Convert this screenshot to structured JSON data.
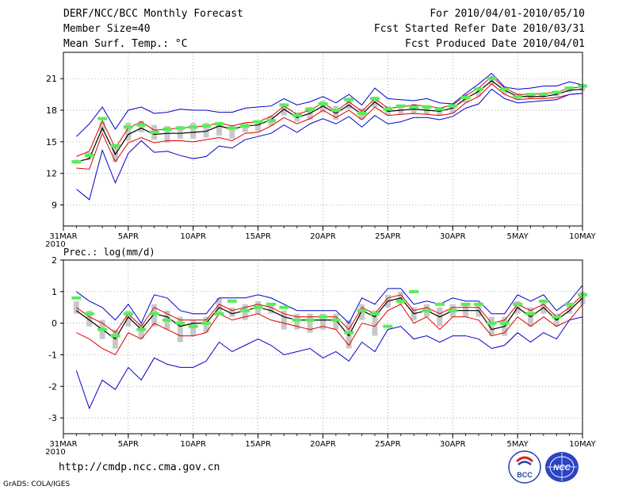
{
  "header": {
    "title": "DERF/NCC/BCC Monthly Forecast",
    "member_size": "Member Size=40",
    "variable": "Mean Surf. Temp.: °C",
    "period": "For 2010/04/01-2010/05/10",
    "started": "Fcst Started Refer Date 2010/03/31",
    "produced": "Fcst Produced Date 2010/04/01"
  },
  "colors": {
    "envelope": "#0000cc",
    "spread": "#dd0000",
    "mean": "#000000",
    "bar": "#c8c8c8",
    "median": "#55ee55",
    "grid": "#888888"
  },
  "footer": {
    "url": "http://cmdp.ncc.cma.gov.cn",
    "grads": "GrADS: COLA/IGES"
  },
  "logos": {
    "bcc_text": "BCC",
    "ncc_text": "NCC"
  },
  "chart_data": [
    {
      "type": "line",
      "title": "Mean Surf. Temp.: °C",
      "x_tick_labels": [
        "31MAR\n2010",
        "5APR",
        "10APR",
        "15APR",
        "20APR",
        "25APR",
        "30APR",
        "5MAY",
        "10MAY"
      ],
      "x_tick_days": [
        0,
        5,
        10,
        15,
        20,
        25,
        30,
        35,
        40
      ],
      "xlim": [
        0,
        40
      ],
      "ylim": [
        7,
        23.5
      ],
      "y_ticks": [
        9,
        12,
        15,
        18,
        21
      ],
      "days": [
        1,
        2,
        3,
        4,
        5,
        6,
        7,
        8,
        9,
        10,
        11,
        12,
        13,
        14,
        15,
        16,
        17,
        18,
        19,
        20,
        21,
        22,
        23,
        24,
        25,
        26,
        27,
        28,
        29,
        30,
        31,
        32,
        33,
        34,
        35,
        36,
        37,
        38,
        39,
        40
      ],
      "series": [
        {
          "name": "max",
          "values": [
            15.5,
            16.7,
            18.3,
            16.2,
            18.0,
            18.3,
            17.7,
            17.8,
            18.1,
            18.0,
            18.0,
            17.8,
            17.8,
            18.2,
            18.3,
            18.4,
            19.1,
            18.5,
            18.8,
            19.3,
            18.7,
            19.5,
            18.5,
            20.1,
            19.1,
            19.0,
            18.9,
            19.1,
            18.7,
            18.6,
            19.6,
            20.5,
            21.5,
            20.2,
            20.0,
            20.1,
            20.3,
            20.3,
            20.7,
            20.4
          ]
        },
        {
          "name": "upper",
          "values": [
            13.6,
            14.1,
            17.0,
            14.4,
            16.3,
            16.9,
            16.1,
            16.2,
            16.3,
            16.4,
            16.5,
            16.8,
            16.5,
            16.8,
            16.9,
            17.4,
            18.4,
            17.6,
            18.0,
            18.7,
            17.9,
            18.8,
            17.9,
            19.1,
            18.2,
            18.3,
            18.5,
            18.4,
            18.2,
            18.5,
            19.4,
            20.1,
            21.2,
            20.1,
            19.5,
            19.5,
            19.6,
            19.7,
            20.1,
            20.2
          ]
        },
        {
          "name": "mean",
          "values": [
            13.1,
            13.4,
            16.3,
            13.8,
            15.7,
            16.3,
            15.7,
            15.8,
            15.8,
            15.9,
            16.0,
            16.5,
            16.2,
            16.5,
            16.6,
            17.1,
            18.1,
            17.3,
            17.7,
            18.4,
            17.7,
            18.5,
            17.6,
            18.8,
            17.9,
            18.0,
            18.1,
            18.0,
            17.9,
            18.2,
            19.1,
            19.8,
            20.8,
            19.9,
            19.3,
            19.3,
            19.3,
            19.5,
            19.9,
            20.0
          ]
        },
        {
          "name": "lower",
          "values": [
            12.5,
            12.4,
            15.8,
            13.1,
            14.9,
            15.4,
            14.9,
            15.1,
            15.1,
            15.0,
            15.2,
            15.4,
            15.1,
            15.8,
            15.9,
            16.5,
            17.3,
            16.7,
            17.2,
            18.0,
            17.3,
            18.0,
            17.1,
            18.3,
            17.5,
            17.6,
            17.7,
            17.6,
            17.5,
            17.7,
            18.7,
            19.3,
            20.5,
            19.5,
            19.0,
            19.1,
            19.1,
            19.2,
            19.5,
            19.6
          ]
        },
        {
          "name": "min",
          "values": [
            10.5,
            9.5,
            14.2,
            11.1,
            13.9,
            15.1,
            14.0,
            14.1,
            13.7,
            13.4,
            13.6,
            14.6,
            14.4,
            15.2,
            15.5,
            15.8,
            16.6,
            15.9,
            16.7,
            17.2,
            16.7,
            17.4,
            16.4,
            17.5,
            16.7,
            16.9,
            17.3,
            17.3,
            17.1,
            17.4,
            18.2,
            18.6,
            20.0,
            19.1,
            18.7,
            18.8,
            18.9,
            19.0,
            19.5,
            19.6
          ]
        }
      ],
      "box_low": [
        12.9,
        13.3,
        15.9,
        13.1,
        15.1,
        15.9,
        15.2,
        14.9,
        15.3,
        15.3,
        15.4,
        15.6,
        15.3,
        15.9,
        16.0,
        16.5,
        17.5,
        16.9,
        17.1,
        17.8,
        17.1,
        18.1,
        17.1,
        18.3,
        17.5,
        17.6,
        17.6,
        17.6,
        17.5,
        17.7,
        18.7,
        19.3,
        20.4,
        19.5,
        19.0,
        19.1,
        19.2,
        19.3,
        19.7,
        19.8
      ],
      "box_high": [
        13.3,
        14.0,
        16.9,
        14.8,
        16.8,
        17.0,
        16.6,
        16.5,
        16.5,
        16.8,
        16.8,
        16.9,
        16.5,
        16.8,
        16.9,
        17.5,
        18.5,
        17.8,
        18.3,
        18.9,
        18.4,
        19.2,
        18.2,
        19.3,
        18.4,
        18.4,
        18.6,
        18.5,
        18.3,
        18.5,
        19.5,
        20.2,
        21.2,
        20.1,
        19.6,
        19.6,
        19.7,
        19.8,
        20.2,
        20.5
      ],
      "median": [
        13.1,
        13.7,
        17.2,
        14.6,
        16.4,
        16.6,
        15.9,
        16.2,
        16.3,
        16.4,
        16.5,
        16.7,
        16.3,
        16.5,
        16.9,
        17.0,
        18.5,
        17.5,
        18.1,
        18.6,
        18.0,
        19.0,
        17.7,
        19.1,
        18.1,
        18.4,
        18.3,
        18.3,
        18.1,
        18.4,
        19.2,
        20.0,
        21.0,
        20.0,
        19.3,
        19.5,
        19.5,
        19.7,
        20.1,
        20.3
      ]
    },
    {
      "type": "line",
      "title": "Prec.: log(mm/d)",
      "x_tick_labels": [
        "31MAR\n2010",
        "5APR",
        "10APR",
        "15APR",
        "20APR",
        "25APR",
        "30APR",
        "5MAY",
        "10MAY"
      ],
      "x_tick_days": [
        0,
        5,
        10,
        15,
        20,
        25,
        30,
        35,
        40
      ],
      "xlim": [
        0,
        40
      ],
      "ylim": [
        -3.5,
        2
      ],
      "y_ticks": [
        -3,
        -2,
        -1,
        0,
        1,
        2
      ],
      "days": [
        1,
        2,
        3,
        4,
        5,
        6,
        7,
        8,
        9,
        10,
        11,
        12,
        13,
        14,
        15,
        16,
        17,
        18,
        19,
        20,
        21,
        22,
        23,
        24,
        25,
        26,
        27,
        28,
        29,
        30,
        31,
        32,
        33,
        34,
        35,
        36,
        37,
        38,
        39,
        40
      ],
      "series": [
        {
          "name": "max",
          "values": [
            1.0,
            0.7,
            0.5,
            0.1,
            0.6,
            0.0,
            0.9,
            0.8,
            0.4,
            0.3,
            0.3,
            0.8,
            0.8,
            0.8,
            0.9,
            0.8,
            0.6,
            0.4,
            0.4,
            0.4,
            0.4,
            0.0,
            0.8,
            0.6,
            1.1,
            1.1,
            0.6,
            0.7,
            0.6,
            0.8,
            0.7,
            0.7,
            0.3,
            0.3,
            0.9,
            0.7,
            0.9,
            0.4,
            0.7,
            1.2
          ]
        },
        {
          "name": "upper",
          "values": [
            0.5,
            0.2,
            0.0,
            -0.3,
            0.3,
            -0.1,
            0.5,
            0.3,
            0.1,
            0.1,
            0.1,
            0.6,
            0.4,
            0.5,
            0.6,
            0.5,
            0.3,
            0.2,
            0.2,
            0.2,
            0.2,
            -0.2,
            0.5,
            0.3,
            0.8,
            0.9,
            0.4,
            0.5,
            0.3,
            0.5,
            0.5,
            0.5,
            0.0,
            0.1,
            0.6,
            0.4,
            0.6,
            0.2,
            0.5,
            0.9
          ]
        },
        {
          "name": "mean",
          "values": [
            0.4,
            0.1,
            -0.2,
            -0.5,
            0.2,
            -0.2,
            0.3,
            0.2,
            -0.1,
            0.0,
            0.0,
            0.5,
            0.3,
            0.4,
            0.5,
            0.4,
            0.2,
            0.1,
            0.1,
            0.1,
            0.1,
            -0.4,
            0.4,
            0.2,
            0.7,
            0.8,
            0.3,
            0.4,
            0.2,
            0.4,
            0.4,
            0.4,
            -0.2,
            -0.1,
            0.5,
            0.2,
            0.5,
            0.1,
            0.4,
            0.8
          ]
        },
        {
          "name": "lower",
          "values": [
            -0.3,
            -0.5,
            -0.8,
            -1.0,
            -0.3,
            -0.5,
            0.0,
            -0.2,
            -0.4,
            -0.4,
            -0.3,
            0.3,
            0.1,
            0.2,
            0.3,
            0.1,
            0.0,
            -0.1,
            -0.2,
            -0.1,
            -0.2,
            -0.7,
            0.0,
            -0.1,
            0.4,
            0.6,
            0.0,
            0.2,
            -0.2,
            0.2,
            0.2,
            0.1,
            -0.4,
            -0.3,
            0.2,
            -0.1,
            0.2,
            -0.1,
            0.1,
            0.6
          ]
        },
        {
          "name": "min",
          "values": [
            -1.5,
            -2.7,
            -1.8,
            -2.1,
            -1.4,
            -1.8,
            -1.1,
            -1.3,
            -1.4,
            -1.4,
            -1.2,
            -0.6,
            -0.9,
            -0.7,
            -0.5,
            -0.7,
            -1.0,
            -0.9,
            -0.8,
            -1.1,
            -0.9,
            -1.2,
            -0.6,
            -0.9,
            -0.2,
            -0.1,
            -0.5,
            -0.4,
            -0.6,
            -0.4,
            -0.4,
            -0.5,
            -0.8,
            -0.7,
            -0.3,
            -0.6,
            -0.3,
            -0.5,
            0.1,
            0.2
          ]
        }
      ],
      "box_low": [
        0.3,
        -0.1,
        -0.5,
        -0.8,
        -0.1,
        -0.5,
        -0.1,
        -0.2,
        -0.6,
        -0.4,
        -0.3,
        0.3,
        0.2,
        0.1,
        0.3,
        0.3,
        -0.2,
        -0.2,
        -0.3,
        -0.2,
        -0.2,
        -0.8,
        0.1,
        -0.4,
        0.5,
        0.6,
        0.1,
        0.2,
        -0.1,
        0.2,
        0.2,
        0.2,
        -0.4,
        -0.4,
        0.3,
        -0.1,
        0.3,
        -0.1,
        0.3,
        0.6
      ],
      "box_high": [
        0.7,
        0.4,
        0.1,
        -0.2,
        0.4,
        0.0,
        0.6,
        0.4,
        0.2,
        0.1,
        0.2,
        0.8,
        0.5,
        0.6,
        0.7,
        0.6,
        0.4,
        0.3,
        0.3,
        0.3,
        0.3,
        0.1,
        0.6,
        0.4,
        0.9,
        1.0,
        0.5,
        0.6,
        0.5,
        0.6,
        0.6,
        0.6,
        0.2,
        0.2,
        0.7,
        0.5,
        0.7,
        0.3,
        0.6,
        1.0
      ],
      "median": [
        0.8,
        0.3,
        -0.2,
        -0.4,
        0.3,
        -0.2,
        0.3,
        0.1,
        0.0,
        -0.1,
        0.0,
        0.3,
        0.7,
        0.4,
        0.5,
        0.6,
        0.5,
        0.1,
        0.1,
        0.2,
        0.1,
        -0.3,
        0.4,
        0.3,
        -0.1,
        0.7,
        1.0,
        0.4,
        0.6,
        0.4,
        0.6,
        0.6,
        0.0,
        0.0,
        0.6,
        0.3,
        0.7,
        0.2,
        0.6,
        0.9
      ]
    }
  ]
}
